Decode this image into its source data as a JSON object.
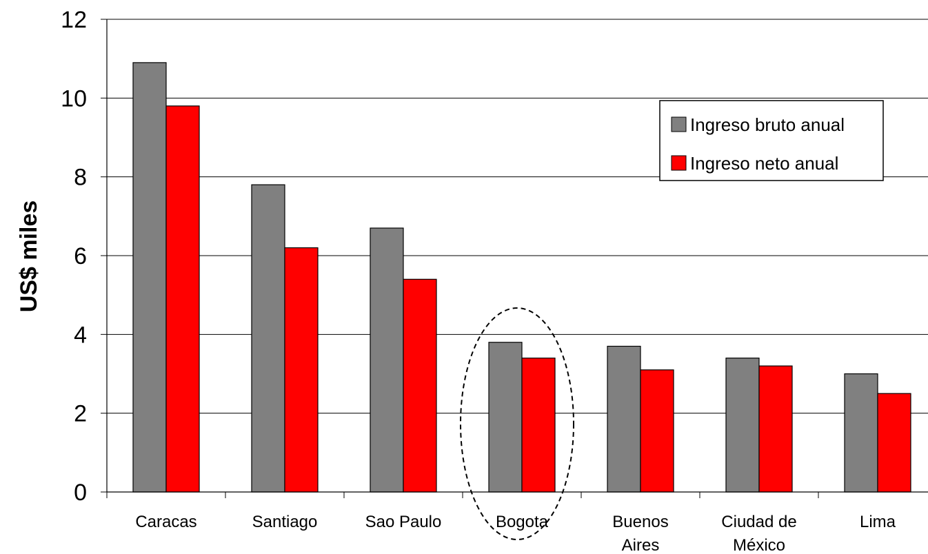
{
  "chart_data": {
    "type": "bar",
    "title": "",
    "xlabel": "",
    "ylabel": "US$ miles",
    "ylim": [
      0,
      12
    ],
    "yticks": [
      "0",
      "2",
      "4",
      "6",
      "8",
      "10",
      "12"
    ],
    "grid": true,
    "legend_position": "top-right",
    "categories": [
      [
        "Caracas"
      ],
      [
        "Santiago"
      ],
      [
        "Sao Paulo"
      ],
      [
        "Bogota"
      ],
      [
        "Buenos",
        "Aires"
      ],
      [
        "Ciudad de",
        "México"
      ],
      [
        "Lima"
      ]
    ],
    "series": [
      {
        "name": "Ingreso bruto anual",
        "color": "#808080",
        "values": [
          10.9,
          7.8,
          6.7,
          3.8,
          3.7,
          3.4,
          3.0
        ]
      },
      {
        "name": "Ingreso neto anual",
        "color": "#ff0000",
        "values": [
          9.8,
          6.2,
          5.4,
          3.4,
          3.1,
          3.2,
          2.5
        ]
      }
    ],
    "highlight_category_index": 3
  }
}
